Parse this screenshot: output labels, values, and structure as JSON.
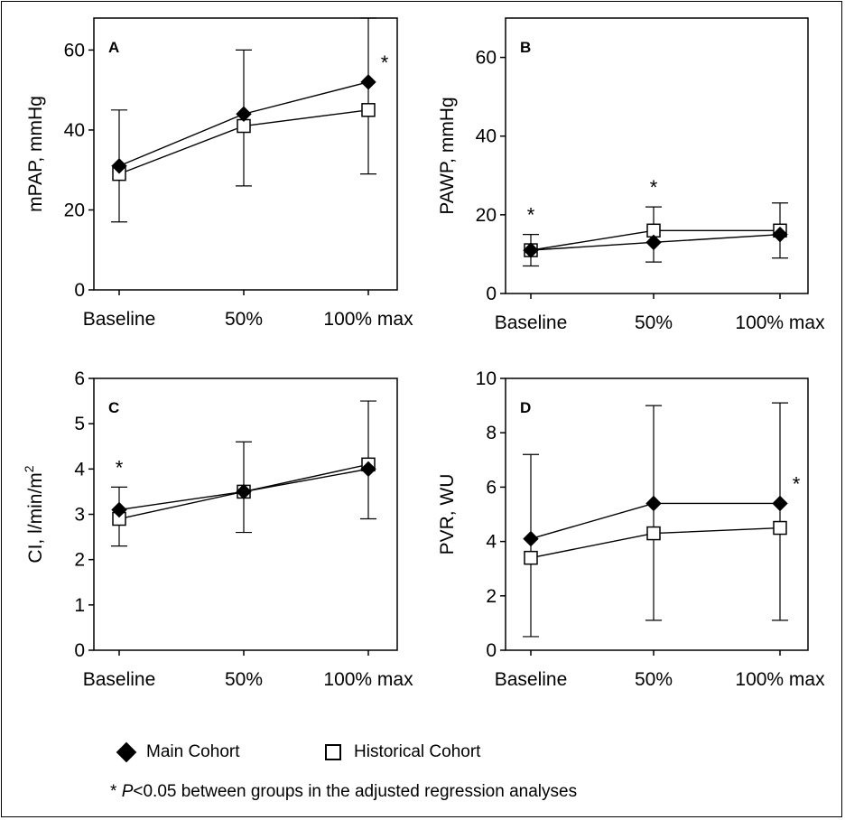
{
  "chart_data": [
    {
      "panel": "A",
      "type": "line",
      "categories": [
        "Baseline",
        "50%",
        "100% max"
      ],
      "ylabel": "mPAP, mmHg",
      "ylim": [
        0,
        68
      ],
      "yticks": [
        0,
        20,
        40,
        60
      ],
      "series": [
        {
          "name": "Main Cohort",
          "marker": "diamond",
          "values": [
            31,
            44,
            52
          ],
          "err_upper": [
            45,
            60,
            68
          ],
          "err_lower": [
            17,
            26,
            29
          ]
        },
        {
          "name": "Historical Cohort",
          "marker": "square",
          "values": [
            29,
            41,
            45
          ]
        }
      ],
      "significance": [
        {
          "category": "100% max",
          "label": "*"
        }
      ]
    },
    {
      "panel": "B",
      "type": "line",
      "categories": [
        "Baseline",
        "50%",
        "100% max"
      ],
      "ylabel": "PAWP, mmHg",
      "ylim": [
        0,
        70
      ],
      "yticks": [
        0,
        20,
        40,
        60
      ],
      "series": [
        {
          "name": "Main Cohort",
          "marker": "diamond",
          "values": [
            11,
            13,
            15
          ],
          "err_upper": [
            15,
            22,
            23
          ],
          "err_lower": [
            7,
            8,
            9
          ]
        },
        {
          "name": "Historical Cohort",
          "marker": "square",
          "values": [
            11,
            16,
            16
          ]
        }
      ],
      "significance": [
        {
          "category": "Baseline",
          "label": "*"
        },
        {
          "category": "50%",
          "label": "*"
        }
      ]
    },
    {
      "panel": "C",
      "type": "line",
      "categories": [
        "Baseline",
        "50%",
        "100% max"
      ],
      "ylabel": "CI, l/min/m",
      "ylabel_sup": "2",
      "ylim": [
        0,
        6
      ],
      "yticks": [
        0,
        1,
        2,
        3,
        4,
        5,
        6
      ],
      "series": [
        {
          "name": "Main Cohort",
          "marker": "diamond",
          "values": [
            3.1,
            3.5,
            4.0
          ],
          "err_upper": [
            3.6,
            4.6,
            5.5
          ],
          "err_lower": [
            2.3,
            2.6,
            2.9
          ]
        },
        {
          "name": "Historical Cohort",
          "marker": "square",
          "values": [
            2.9,
            3.5,
            4.1
          ]
        }
      ],
      "significance": [
        {
          "category": "Baseline",
          "label": "*"
        }
      ]
    },
    {
      "panel": "D",
      "type": "line",
      "categories": [
        "Baseline",
        "50%",
        "100% max"
      ],
      "ylabel": "PVR, WU",
      "ylim": [
        0,
        10
      ],
      "yticks": [
        0,
        2,
        4,
        6,
        8,
        10
      ],
      "series": [
        {
          "name": "Main Cohort",
          "marker": "diamond",
          "values": [
            4.1,
            5.4,
            5.4
          ],
          "err_upper": [
            7.2,
            9.0,
            9.1
          ],
          "err_lower": [
            0.5,
            1.1,
            1.1
          ]
        },
        {
          "name": "Historical Cohort",
          "marker": "square",
          "values": [
            3.4,
            4.3,
            4.5
          ]
        }
      ],
      "significance": [
        {
          "category": "100% max",
          "label": "*"
        }
      ]
    }
  ],
  "legend": {
    "main_label": "Main Cohort",
    "historical_label": "Historical Cohort"
  },
  "footnote": {
    "star": "*",
    "p": "P",
    "text": "<0.05 between groups in the adjusted regression analyses"
  },
  "colors": {
    "line": "#000000",
    "main_fill": "#000000",
    "historical_fill": "#ffffff"
  }
}
